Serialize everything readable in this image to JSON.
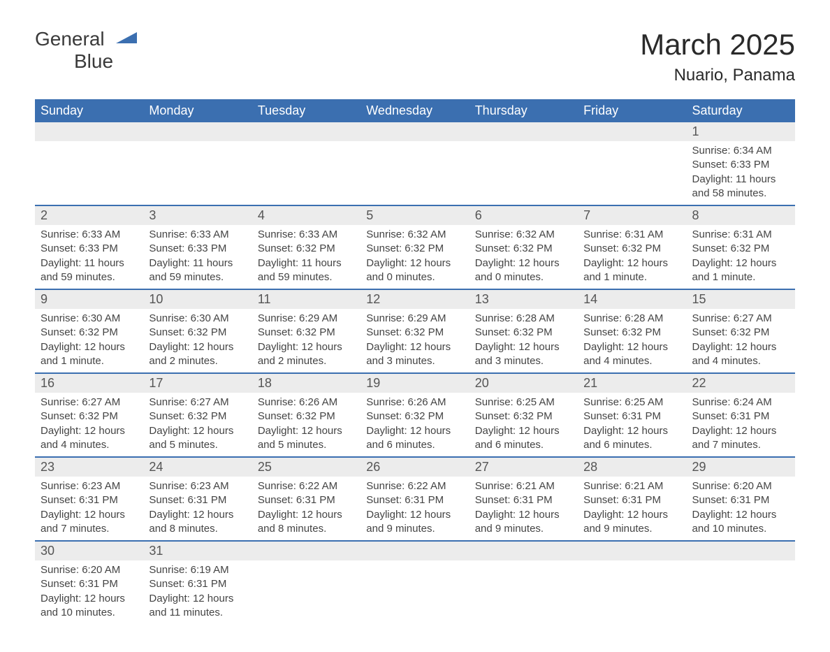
{
  "logo": {
    "word1": "General",
    "word2": "Blue"
  },
  "header": {
    "monthTitle": "March 2025",
    "location": "Nuario, Panama"
  },
  "colors": {
    "headerBg": "#3b6fb0",
    "headerText": "#ffffff",
    "dayNumBg": "#ececec",
    "borderTop": "#3b6fb0",
    "bodyText": "#3a3a3a"
  },
  "dayNames": [
    "Sunday",
    "Monday",
    "Tuesday",
    "Wednesday",
    "Thursday",
    "Friday",
    "Saturday"
  ],
  "weeks": [
    [
      null,
      null,
      null,
      null,
      null,
      null,
      {
        "n": "1",
        "sr": "Sunrise: 6:34 AM",
        "ss": "Sunset: 6:33 PM",
        "dl": "Daylight: 11 hours and 58 minutes."
      }
    ],
    [
      {
        "n": "2",
        "sr": "Sunrise: 6:33 AM",
        "ss": "Sunset: 6:33 PM",
        "dl": "Daylight: 11 hours and 59 minutes."
      },
      {
        "n": "3",
        "sr": "Sunrise: 6:33 AM",
        "ss": "Sunset: 6:33 PM",
        "dl": "Daylight: 11 hours and 59 minutes."
      },
      {
        "n": "4",
        "sr": "Sunrise: 6:33 AM",
        "ss": "Sunset: 6:32 PM",
        "dl": "Daylight: 11 hours and 59 minutes."
      },
      {
        "n": "5",
        "sr": "Sunrise: 6:32 AM",
        "ss": "Sunset: 6:32 PM",
        "dl": "Daylight: 12 hours and 0 minutes."
      },
      {
        "n": "6",
        "sr": "Sunrise: 6:32 AM",
        "ss": "Sunset: 6:32 PM",
        "dl": "Daylight: 12 hours and 0 minutes."
      },
      {
        "n": "7",
        "sr": "Sunrise: 6:31 AM",
        "ss": "Sunset: 6:32 PM",
        "dl": "Daylight: 12 hours and 1 minute."
      },
      {
        "n": "8",
        "sr": "Sunrise: 6:31 AM",
        "ss": "Sunset: 6:32 PM",
        "dl": "Daylight: 12 hours and 1 minute."
      }
    ],
    [
      {
        "n": "9",
        "sr": "Sunrise: 6:30 AM",
        "ss": "Sunset: 6:32 PM",
        "dl": "Daylight: 12 hours and 1 minute."
      },
      {
        "n": "10",
        "sr": "Sunrise: 6:30 AM",
        "ss": "Sunset: 6:32 PM",
        "dl": "Daylight: 12 hours and 2 minutes."
      },
      {
        "n": "11",
        "sr": "Sunrise: 6:29 AM",
        "ss": "Sunset: 6:32 PM",
        "dl": "Daylight: 12 hours and 2 minutes."
      },
      {
        "n": "12",
        "sr": "Sunrise: 6:29 AM",
        "ss": "Sunset: 6:32 PM",
        "dl": "Daylight: 12 hours and 3 minutes."
      },
      {
        "n": "13",
        "sr": "Sunrise: 6:28 AM",
        "ss": "Sunset: 6:32 PM",
        "dl": "Daylight: 12 hours and 3 minutes."
      },
      {
        "n": "14",
        "sr": "Sunrise: 6:28 AM",
        "ss": "Sunset: 6:32 PM",
        "dl": "Daylight: 12 hours and 4 minutes."
      },
      {
        "n": "15",
        "sr": "Sunrise: 6:27 AM",
        "ss": "Sunset: 6:32 PM",
        "dl": "Daylight: 12 hours and 4 minutes."
      }
    ],
    [
      {
        "n": "16",
        "sr": "Sunrise: 6:27 AM",
        "ss": "Sunset: 6:32 PM",
        "dl": "Daylight: 12 hours and 4 minutes."
      },
      {
        "n": "17",
        "sr": "Sunrise: 6:27 AM",
        "ss": "Sunset: 6:32 PM",
        "dl": "Daylight: 12 hours and 5 minutes."
      },
      {
        "n": "18",
        "sr": "Sunrise: 6:26 AM",
        "ss": "Sunset: 6:32 PM",
        "dl": "Daylight: 12 hours and 5 minutes."
      },
      {
        "n": "19",
        "sr": "Sunrise: 6:26 AM",
        "ss": "Sunset: 6:32 PM",
        "dl": "Daylight: 12 hours and 6 minutes."
      },
      {
        "n": "20",
        "sr": "Sunrise: 6:25 AM",
        "ss": "Sunset: 6:32 PM",
        "dl": "Daylight: 12 hours and 6 minutes."
      },
      {
        "n": "21",
        "sr": "Sunrise: 6:25 AM",
        "ss": "Sunset: 6:31 PM",
        "dl": "Daylight: 12 hours and 6 minutes."
      },
      {
        "n": "22",
        "sr": "Sunrise: 6:24 AM",
        "ss": "Sunset: 6:31 PM",
        "dl": "Daylight: 12 hours and 7 minutes."
      }
    ],
    [
      {
        "n": "23",
        "sr": "Sunrise: 6:23 AM",
        "ss": "Sunset: 6:31 PM",
        "dl": "Daylight: 12 hours and 7 minutes."
      },
      {
        "n": "24",
        "sr": "Sunrise: 6:23 AM",
        "ss": "Sunset: 6:31 PM",
        "dl": "Daylight: 12 hours and 8 minutes."
      },
      {
        "n": "25",
        "sr": "Sunrise: 6:22 AM",
        "ss": "Sunset: 6:31 PM",
        "dl": "Daylight: 12 hours and 8 minutes."
      },
      {
        "n": "26",
        "sr": "Sunrise: 6:22 AM",
        "ss": "Sunset: 6:31 PM",
        "dl": "Daylight: 12 hours and 9 minutes."
      },
      {
        "n": "27",
        "sr": "Sunrise: 6:21 AM",
        "ss": "Sunset: 6:31 PM",
        "dl": "Daylight: 12 hours and 9 minutes."
      },
      {
        "n": "28",
        "sr": "Sunrise: 6:21 AM",
        "ss": "Sunset: 6:31 PM",
        "dl": "Daylight: 12 hours and 9 minutes."
      },
      {
        "n": "29",
        "sr": "Sunrise: 6:20 AM",
        "ss": "Sunset: 6:31 PM",
        "dl": "Daylight: 12 hours and 10 minutes."
      }
    ],
    [
      {
        "n": "30",
        "sr": "Sunrise: 6:20 AM",
        "ss": "Sunset: 6:31 PM",
        "dl": "Daylight: 12 hours and 10 minutes."
      },
      {
        "n": "31",
        "sr": "Sunrise: 6:19 AM",
        "ss": "Sunset: 6:31 PM",
        "dl": "Daylight: 12 hours and 11 minutes."
      },
      null,
      null,
      null,
      null,
      null
    ]
  ]
}
